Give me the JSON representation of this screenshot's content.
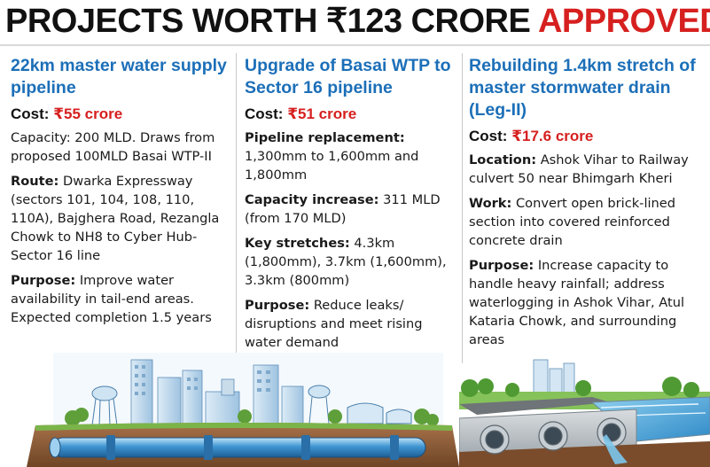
{
  "headline": {
    "main": "PROJECTS WORTH ₹123 CRORE",
    "accent": "APPROVED"
  },
  "projects": [
    {
      "title": "22km master water supply pipeline",
      "cost_label": "Cost:",
      "cost_value": "₹55 crore",
      "details": [
        {
          "label": "",
          "text": "Capacity: 200 MLD. Draws from proposed 100MLD Basai WTP-II"
        },
        {
          "label": "Route:",
          "text": "Dwarka Expressway (sectors 101, 104, 108, 110, 110A), Bajghera Road, Rezangla Chowk to NH8 to Cyber Hub-Sector 16 line"
        },
        {
          "label": "Purpose:",
          "text": "Improve water availability in tail-end areas. Expected completion 1.5 years"
        }
      ]
    },
    {
      "title": "Upgrade of Basai WTP to Sector 16 pipeline",
      "cost_label": "Cost:",
      "cost_value": "₹51 crore",
      "details": [
        {
          "label": "Pipeline replacement:",
          "text": "1,300mm to 1,600mm and 1,800mm"
        },
        {
          "label": "Capacity increase:",
          "text": "311 MLD (from 170 MLD)"
        },
        {
          "label": "Key stretches:",
          "text": "4.3km (1,800mm), 3.7km (1,600mm), 3.3km (800mm)"
        },
        {
          "label": "Purpose:",
          "text": "Reduce leaks/ disruptions and meet rising water demand"
        }
      ]
    },
    {
      "title": "Rebuilding 1.4km stretch of master stormwater drain (Leg-II)",
      "cost_label": "Cost:",
      "cost_value": "₹17.6 crore",
      "details": [
        {
          "label": "Location:",
          "text": "Ashok Vihar to Railway culvert 50 near Bhimgarh Kheri"
        },
        {
          "label": "Work:",
          "text": "Convert open brick-lined section into covered reinforced concrete drain"
        },
        {
          "label": "Purpose:",
          "text": "Increase capacity to handle heavy rainfall; address waterlogging in Ashok Vihar, Atul Kataria Chowk, and surrounding areas"
        }
      ]
    }
  ],
  "illustrations": {
    "city_pipeline": "city-pipeline-illustration",
    "stormwater_drain": "stormwater-drain-illustration"
  },
  "colors": {
    "headline_accent": "#d6201f",
    "title_blue": "#1c6fb8",
    "cost_red": "#d6201f",
    "pipe_blue": "#2e86c8",
    "soil": "#8a5a36"
  }
}
